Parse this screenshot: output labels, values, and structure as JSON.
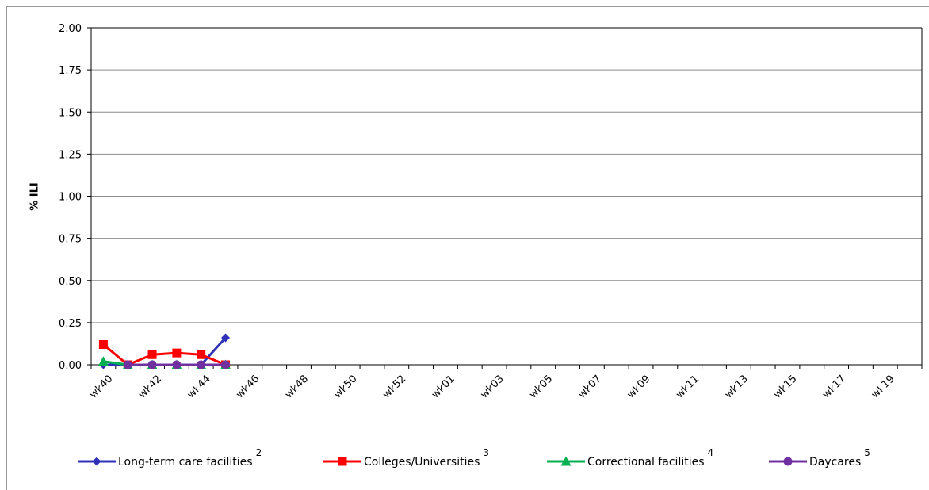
{
  "chart_data": {
    "type": "line",
    "y_label": "% ILI",
    "categories": [
      "wk40",
      null,
      "wk42",
      null,
      "wk44",
      null,
      "wk46",
      null,
      "wk48",
      null,
      "wk50",
      null,
      "wk52",
      null,
      "wk01",
      null,
      "wk03",
      null,
      "wk05",
      null,
      "wk07",
      null,
      "wk09",
      null,
      "wk11",
      null,
      "wk13",
      null,
      "wk15",
      null,
      "wk17",
      null,
      "wk19",
      null
    ],
    "series": [
      {
        "name": "Long-term care facilities",
        "superscript": "2",
        "color": "#3030b8",
        "marker": "diamond",
        "values": [
          0,
          0,
          0,
          0,
          0,
          0.16,
          null,
          null,
          null,
          null,
          null,
          null,
          null,
          null,
          null,
          null,
          null,
          null,
          null,
          null,
          null,
          null,
          null,
          null,
          null,
          null,
          null,
          null,
          null,
          null,
          null,
          null,
          null,
          null
        ]
      },
      {
        "name": "Colleges/Universities",
        "superscript": "3",
        "color": "#ff0000",
        "marker": "square",
        "values": [
          0.12,
          0,
          0.06,
          0.07,
          0.06,
          0,
          null,
          null,
          null,
          null,
          null,
          null,
          null,
          null,
          null,
          null,
          null,
          null,
          null,
          null,
          null,
          null,
          null,
          null,
          null,
          null,
          null,
          null,
          null,
          null,
          null,
          null,
          null,
          null
        ]
      },
      {
        "name": "Correctional facilities",
        "superscript": "4",
        "color": "#00b050",
        "marker": "triangle",
        "values": [
          0.02,
          0,
          0,
          0,
          0,
          0,
          null,
          null,
          null,
          null,
          null,
          null,
          null,
          null,
          null,
          null,
          null,
          null,
          null,
          null,
          null,
          null,
          null,
          null,
          null,
          null,
          null,
          null,
          null,
          null,
          null,
          null,
          null,
          null
        ]
      },
      {
        "name": "Daycares",
        "superscript": "5",
        "color": "#7030a0",
        "marker": "circle",
        "values": [
          null,
          0,
          0,
          0,
          0,
          0,
          null,
          null,
          null,
          null,
          null,
          null,
          null,
          null,
          null,
          null,
          null,
          null,
          null,
          null,
          null,
          null,
          null,
          null,
          null,
          null,
          null,
          null,
          null,
          null,
          null,
          null,
          null,
          null
        ]
      }
    ],
    "ylim": [
      0,
      2
    ],
    "yticks": [
      {
        "value": 0,
        "label": "0.00"
      },
      {
        "value": 0.25,
        "label": "0.25"
      },
      {
        "value": 0.5,
        "label": "0.50"
      },
      {
        "value": 0.75,
        "label": "0.75"
      },
      {
        "value": 1,
        "label": "1.00"
      },
      {
        "value": 1.25,
        "label": "1.25"
      },
      {
        "value": 1.5,
        "label": "1.50"
      },
      {
        "value": 1.75,
        "label": "1.75"
      },
      {
        "value": 2,
        "label": "2.00"
      }
    ],
    "grid": true,
    "legend": "bottom"
  }
}
